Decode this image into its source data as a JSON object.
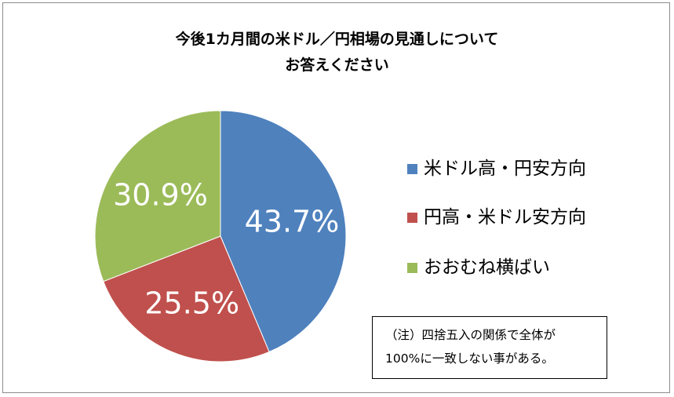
{
  "chart_data": {
    "type": "pie",
    "title": [
      "今後1カ月間の米ドル／円相場の見通しについて",
      "お答えください"
    ],
    "categories": [
      "米ドル高・円安方向",
      "円高・米ドル安方向",
      "おおむね横ばい"
    ],
    "values": [
      43.7,
      25.5,
      30.9
    ],
    "data_labels": [
      "43.7%",
      "25.5%",
      "30.9%"
    ],
    "colors": [
      "#4f81bd",
      "#c0504d",
      "#9bbb59"
    ],
    "legend_position": "right"
  },
  "note": {
    "line1": "（注）四捨五入の関係で全体が",
    "line2": "100%に一致しない事がある。"
  }
}
